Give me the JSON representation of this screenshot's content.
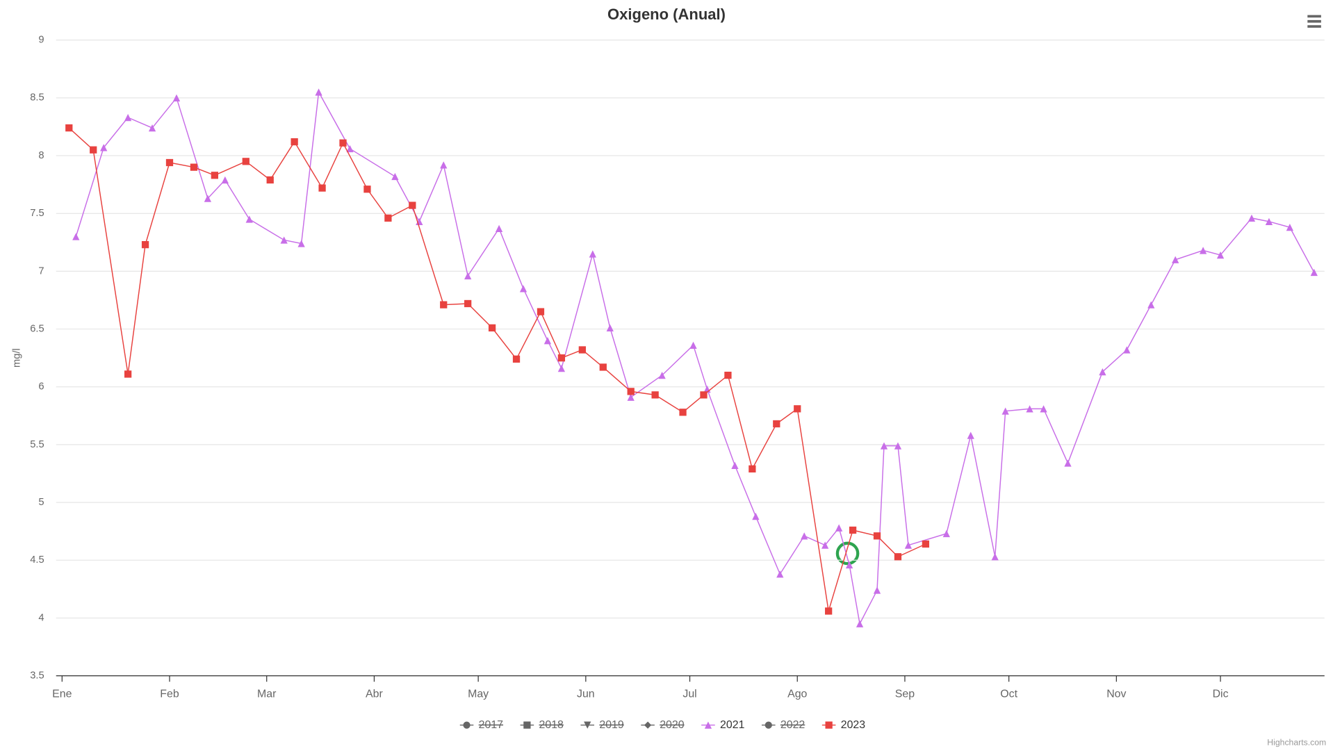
{
  "chart_data": {
    "type": "line",
    "title": "Oxigeno (Anual)",
    "ylabel": "mg/l",
    "credit": "Highcharts.com",
    "xlim": [
      1,
      365
    ],
    "ylim": [
      3.5,
      9
    ],
    "xticks": [
      {
        "value": 1,
        "label": "Ene"
      },
      {
        "value": 32,
        "label": "Feb"
      },
      {
        "value": 60,
        "label": "Mar"
      },
      {
        "value": 91,
        "label": "Abr"
      },
      {
        "value": 121,
        "label": "May"
      },
      {
        "value": 152,
        "label": "Jun"
      },
      {
        "value": 182,
        "label": "Jul"
      },
      {
        "value": 213,
        "label": "Ago"
      },
      {
        "value": 244,
        "label": "Sep"
      },
      {
        "value": 274,
        "label": "Oct"
      },
      {
        "value": 305,
        "label": "Nov"
      },
      {
        "value": 335,
        "label": "Dic"
      }
    ],
    "yticks": [
      3.5,
      4,
      4.5,
      5,
      5.5,
      6,
      6.5,
      7,
      7.5,
      8,
      8.5,
      9
    ],
    "grid": true,
    "series": [
      {
        "name": "2017",
        "visible": false,
        "marker": "circle",
        "color": "#7cb5ec",
        "x": [],
        "values": []
      },
      {
        "name": "2018",
        "visible": false,
        "marker": "square",
        "color": "#434348",
        "x": [],
        "values": []
      },
      {
        "name": "2019",
        "visible": false,
        "marker": "triangle-down",
        "color": "#90ed7d",
        "x": [],
        "values": []
      },
      {
        "name": "2020",
        "visible": false,
        "marker": "diamond",
        "color": "#f7a35c",
        "x": [],
        "values": []
      },
      {
        "name": "2021",
        "visible": true,
        "marker": "triangle",
        "color": "#c86ee8",
        "x": [
          5,
          13,
          20,
          27,
          34,
          43,
          48,
          55,
          65,
          70,
          75,
          84,
          97,
          104,
          111,
          118,
          127,
          134,
          141,
          145,
          154,
          159,
          165,
          174,
          183,
          187,
          195,
          201,
          208,
          215,
          221,
          225,
          228,
          231,
          236,
          238,
          242,
          245,
          256,
          263,
          270,
          273,
          280,
          284,
          291,
          301,
          308,
          315,
          322,
          330,
          335,
          344,
          349,
          355,
          362
        ],
        "values": [
          7.3,
          8.07,
          8.33,
          8.24,
          8.5,
          7.63,
          7.79,
          7.45,
          7.27,
          7.24,
          8.55,
          8.06,
          7.82,
          7.43,
          7.92,
          6.96,
          7.37,
          6.85,
          6.4,
          6.16,
          7.15,
          6.51,
          5.91,
          6.1,
          6.36,
          5.98,
          5.32,
          4.88,
          4.38,
          4.71,
          4.63,
          4.78,
          4.46,
          3.95,
          4.24,
          5.49,
          5.49,
          4.63,
          4.73,
          5.58,
          4.53,
          5.79,
          5.81,
          5.81,
          5.34,
          6.13,
          6.32,
          6.71,
          7.1,
          7.18,
          7.14,
          7.46,
          7.43,
          7.38,
          6.99
        ]
      },
      {
        "name": "2022",
        "visible": false,
        "marker": "circle",
        "color": "#8085e9",
        "x": [],
        "values": []
      },
      {
        "name": "2023",
        "visible": true,
        "marker": "square",
        "color": "#e8423f",
        "x": [
          3,
          10,
          20,
          25,
          32,
          39,
          45,
          54,
          61,
          68,
          76,
          82,
          89,
          95,
          102,
          111,
          118,
          125,
          132,
          139,
          145,
          151,
          157,
          165,
          172,
          180,
          186,
          193,
          200,
          207,
          213,
          222,
          229,
          236,
          242,
          250
        ],
        "values": [
          8.24,
          8.05,
          6.11,
          7.23,
          7.94,
          7.9,
          7.83,
          7.95,
          7.79,
          8.12,
          7.72,
          8.11,
          7.71,
          7.46,
          7.57,
          6.71,
          6.72,
          6.51,
          6.24,
          6.65,
          6.25,
          6.32,
          6.17,
          5.96,
          5.93,
          5.78,
          5.93,
          6.1,
          5.29,
          5.68,
          5.81,
          4.06,
          4.76,
          4.71,
          4.53,
          4.64
        ]
      }
    ]
  }
}
